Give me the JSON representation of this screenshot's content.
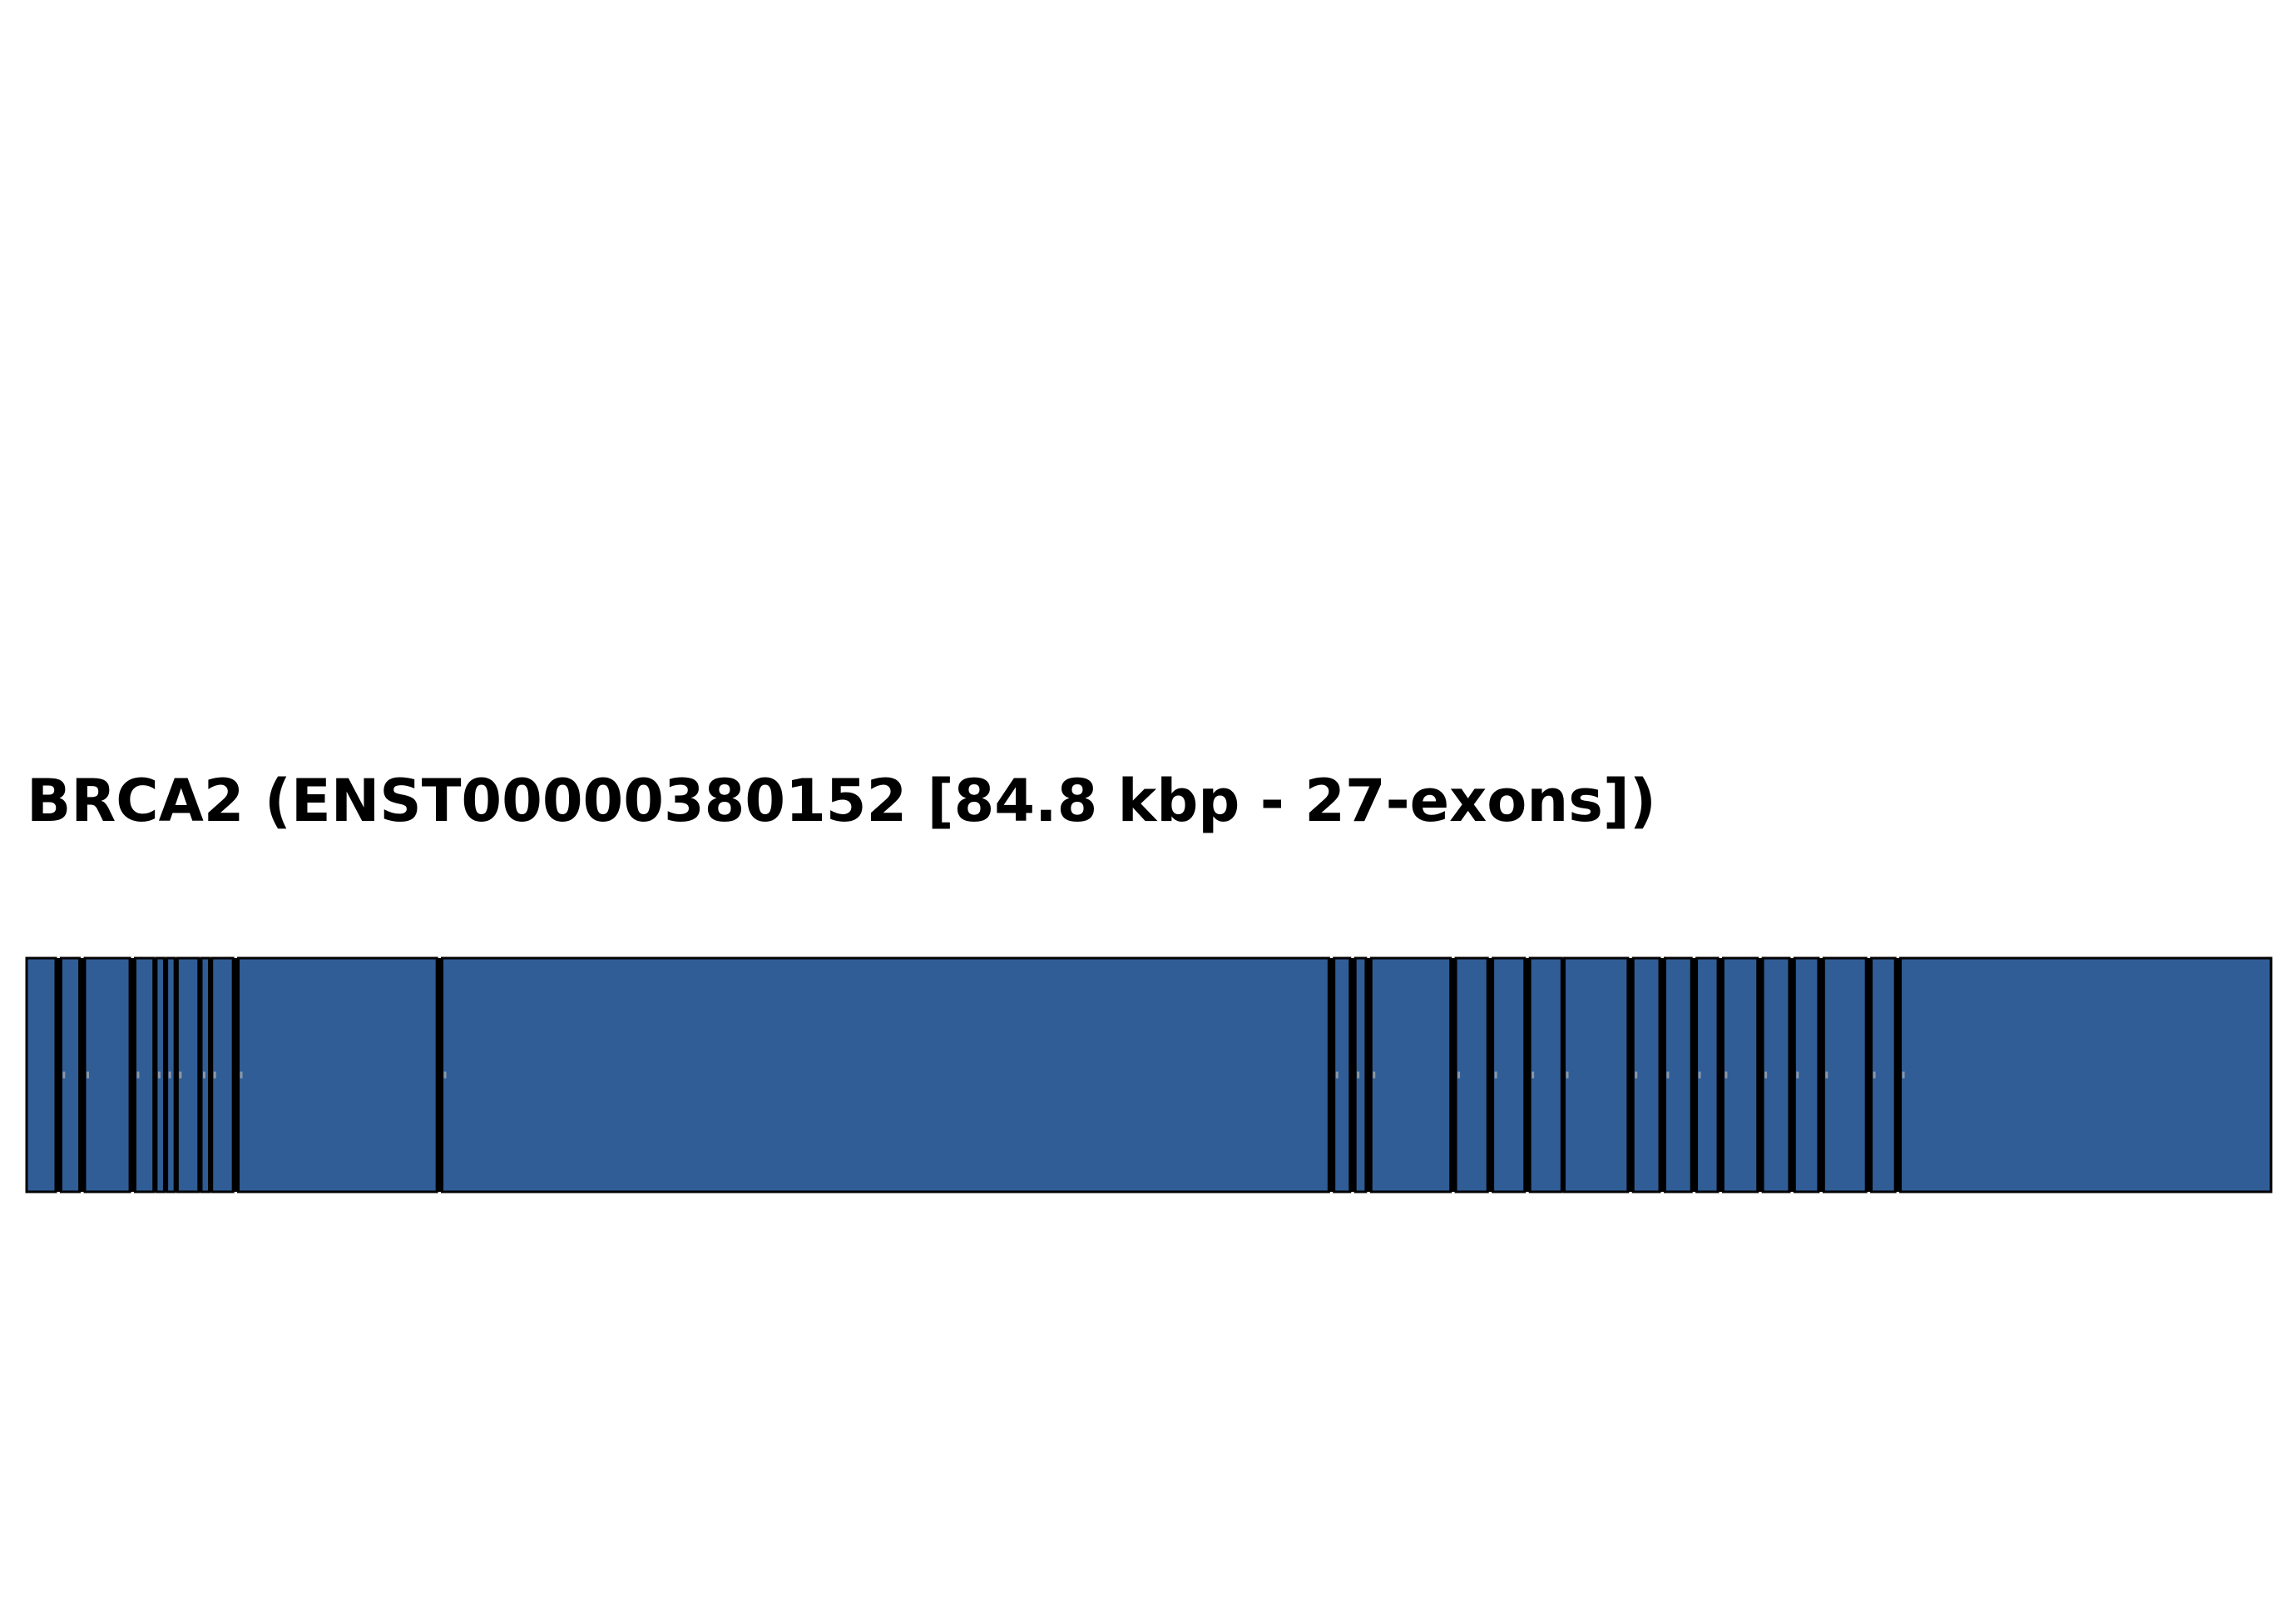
{
  "title": "BRCA2 (ENST00000380152 [84.8 kbp - 27-exons])",
  "colors": {
    "exon_fill": "#305d96",
    "exon_edge": "#000000",
    "intron_line": "#000000",
    "tick_mark": "#8a97a8"
  },
  "chart_data": {
    "type": "gene-structure",
    "gene": "BRCA2",
    "transcript": "ENST00000380152",
    "length_kbp": 84.8,
    "exon_count": 27,
    "exons": [
      {
        "start": 0.0,
        "end": 1.1
      },
      {
        "start": 1.3,
        "end": 2.0
      },
      {
        "start": 2.2,
        "end": 3.9
      },
      {
        "start": 4.1,
        "end": 4.8
      },
      {
        "start": 4.9,
        "end": 5.2
      },
      {
        "start": 5.3,
        "end": 5.6
      },
      {
        "start": 5.7,
        "end": 6.5
      },
      {
        "start": 6.6,
        "end": 6.9
      },
      {
        "start": 7.0,
        "end": 7.8
      },
      {
        "start": 8.0,
        "end": 15.5
      },
      {
        "start": 15.7,
        "end": 49.2
      },
      {
        "start": 49.4,
        "end": 50.0
      },
      {
        "start": 50.2,
        "end": 50.6
      },
      {
        "start": 50.8,
        "end": 53.8
      },
      {
        "start": 54.0,
        "end": 55.2
      },
      {
        "start": 55.4,
        "end": 56.6
      },
      {
        "start": 56.8,
        "end": 58.0
      },
      {
        "start": 58.1,
        "end": 60.5
      },
      {
        "start": 60.7,
        "end": 61.7
      },
      {
        "start": 61.9,
        "end": 62.9
      },
      {
        "start": 63.1,
        "end": 63.9
      },
      {
        "start": 64.1,
        "end": 65.4
      },
      {
        "start": 65.6,
        "end": 66.6
      },
      {
        "start": 66.8,
        "end": 67.7
      },
      {
        "start": 67.9,
        "end": 69.5
      },
      {
        "start": 69.7,
        "end": 70.6
      },
      {
        "start": 70.8,
        "end": 84.8
      }
    ]
  }
}
